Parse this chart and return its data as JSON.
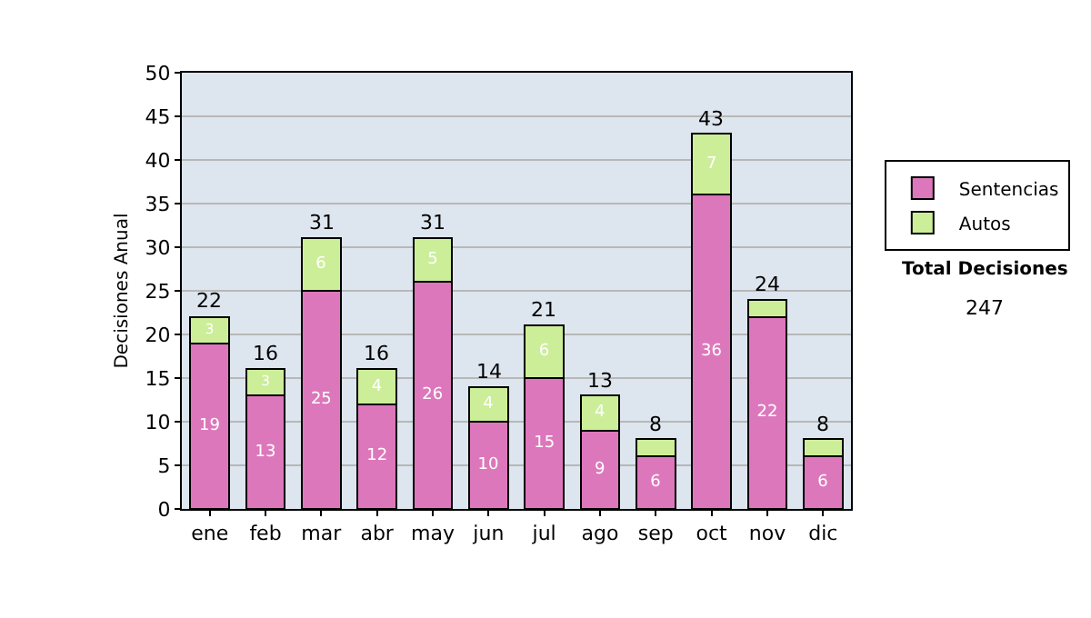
{
  "chart_data": {
    "type": "bar",
    "stacked": true,
    "ylabel": "Decisiones Anual",
    "categories": [
      "ene",
      "feb",
      "mar",
      "abr",
      "may",
      "jun",
      "jul",
      "ago",
      "sep",
      "oct",
      "nov",
      "dic"
    ],
    "series": [
      {
        "name": "Sentencias",
        "color": "#dd77bb",
        "values": [
          19,
          13,
          25,
          12,
          26,
          10,
          15,
          9,
          6,
          36,
          22,
          6
        ],
        "value_labels": [
          "19",
          "13",
          "25",
          "12",
          "26",
          "10",
          "15",
          "9",
          "6",
          "36",
          "22",
          "6"
        ]
      },
      {
        "name": "Autos",
        "color": "#ccee99",
        "values": [
          3,
          3,
          6,
          4,
          5,
          4,
          6,
          4,
          2,
          7,
          2,
          2
        ],
        "value_labels": [
          "3",
          "3",
          "6",
          "4",
          "5",
          "4",
          "6",
          "4",
          null,
          "7",
          null,
          null
        ]
      }
    ],
    "totals": [
      "22",
      "16",
      "31",
      "16",
      "31",
      "14",
      "21",
      "13",
      "8",
      "43",
      "24",
      "8"
    ],
    "ylim": [
      0,
      50
    ],
    "yticks": [
      0,
      5,
      10,
      15,
      20,
      25,
      30,
      35,
      40,
      45,
      50
    ],
    "grid": "y",
    "legend": "right",
    "annotations": [
      "Total Decisiones",
      "247"
    ]
  }
}
